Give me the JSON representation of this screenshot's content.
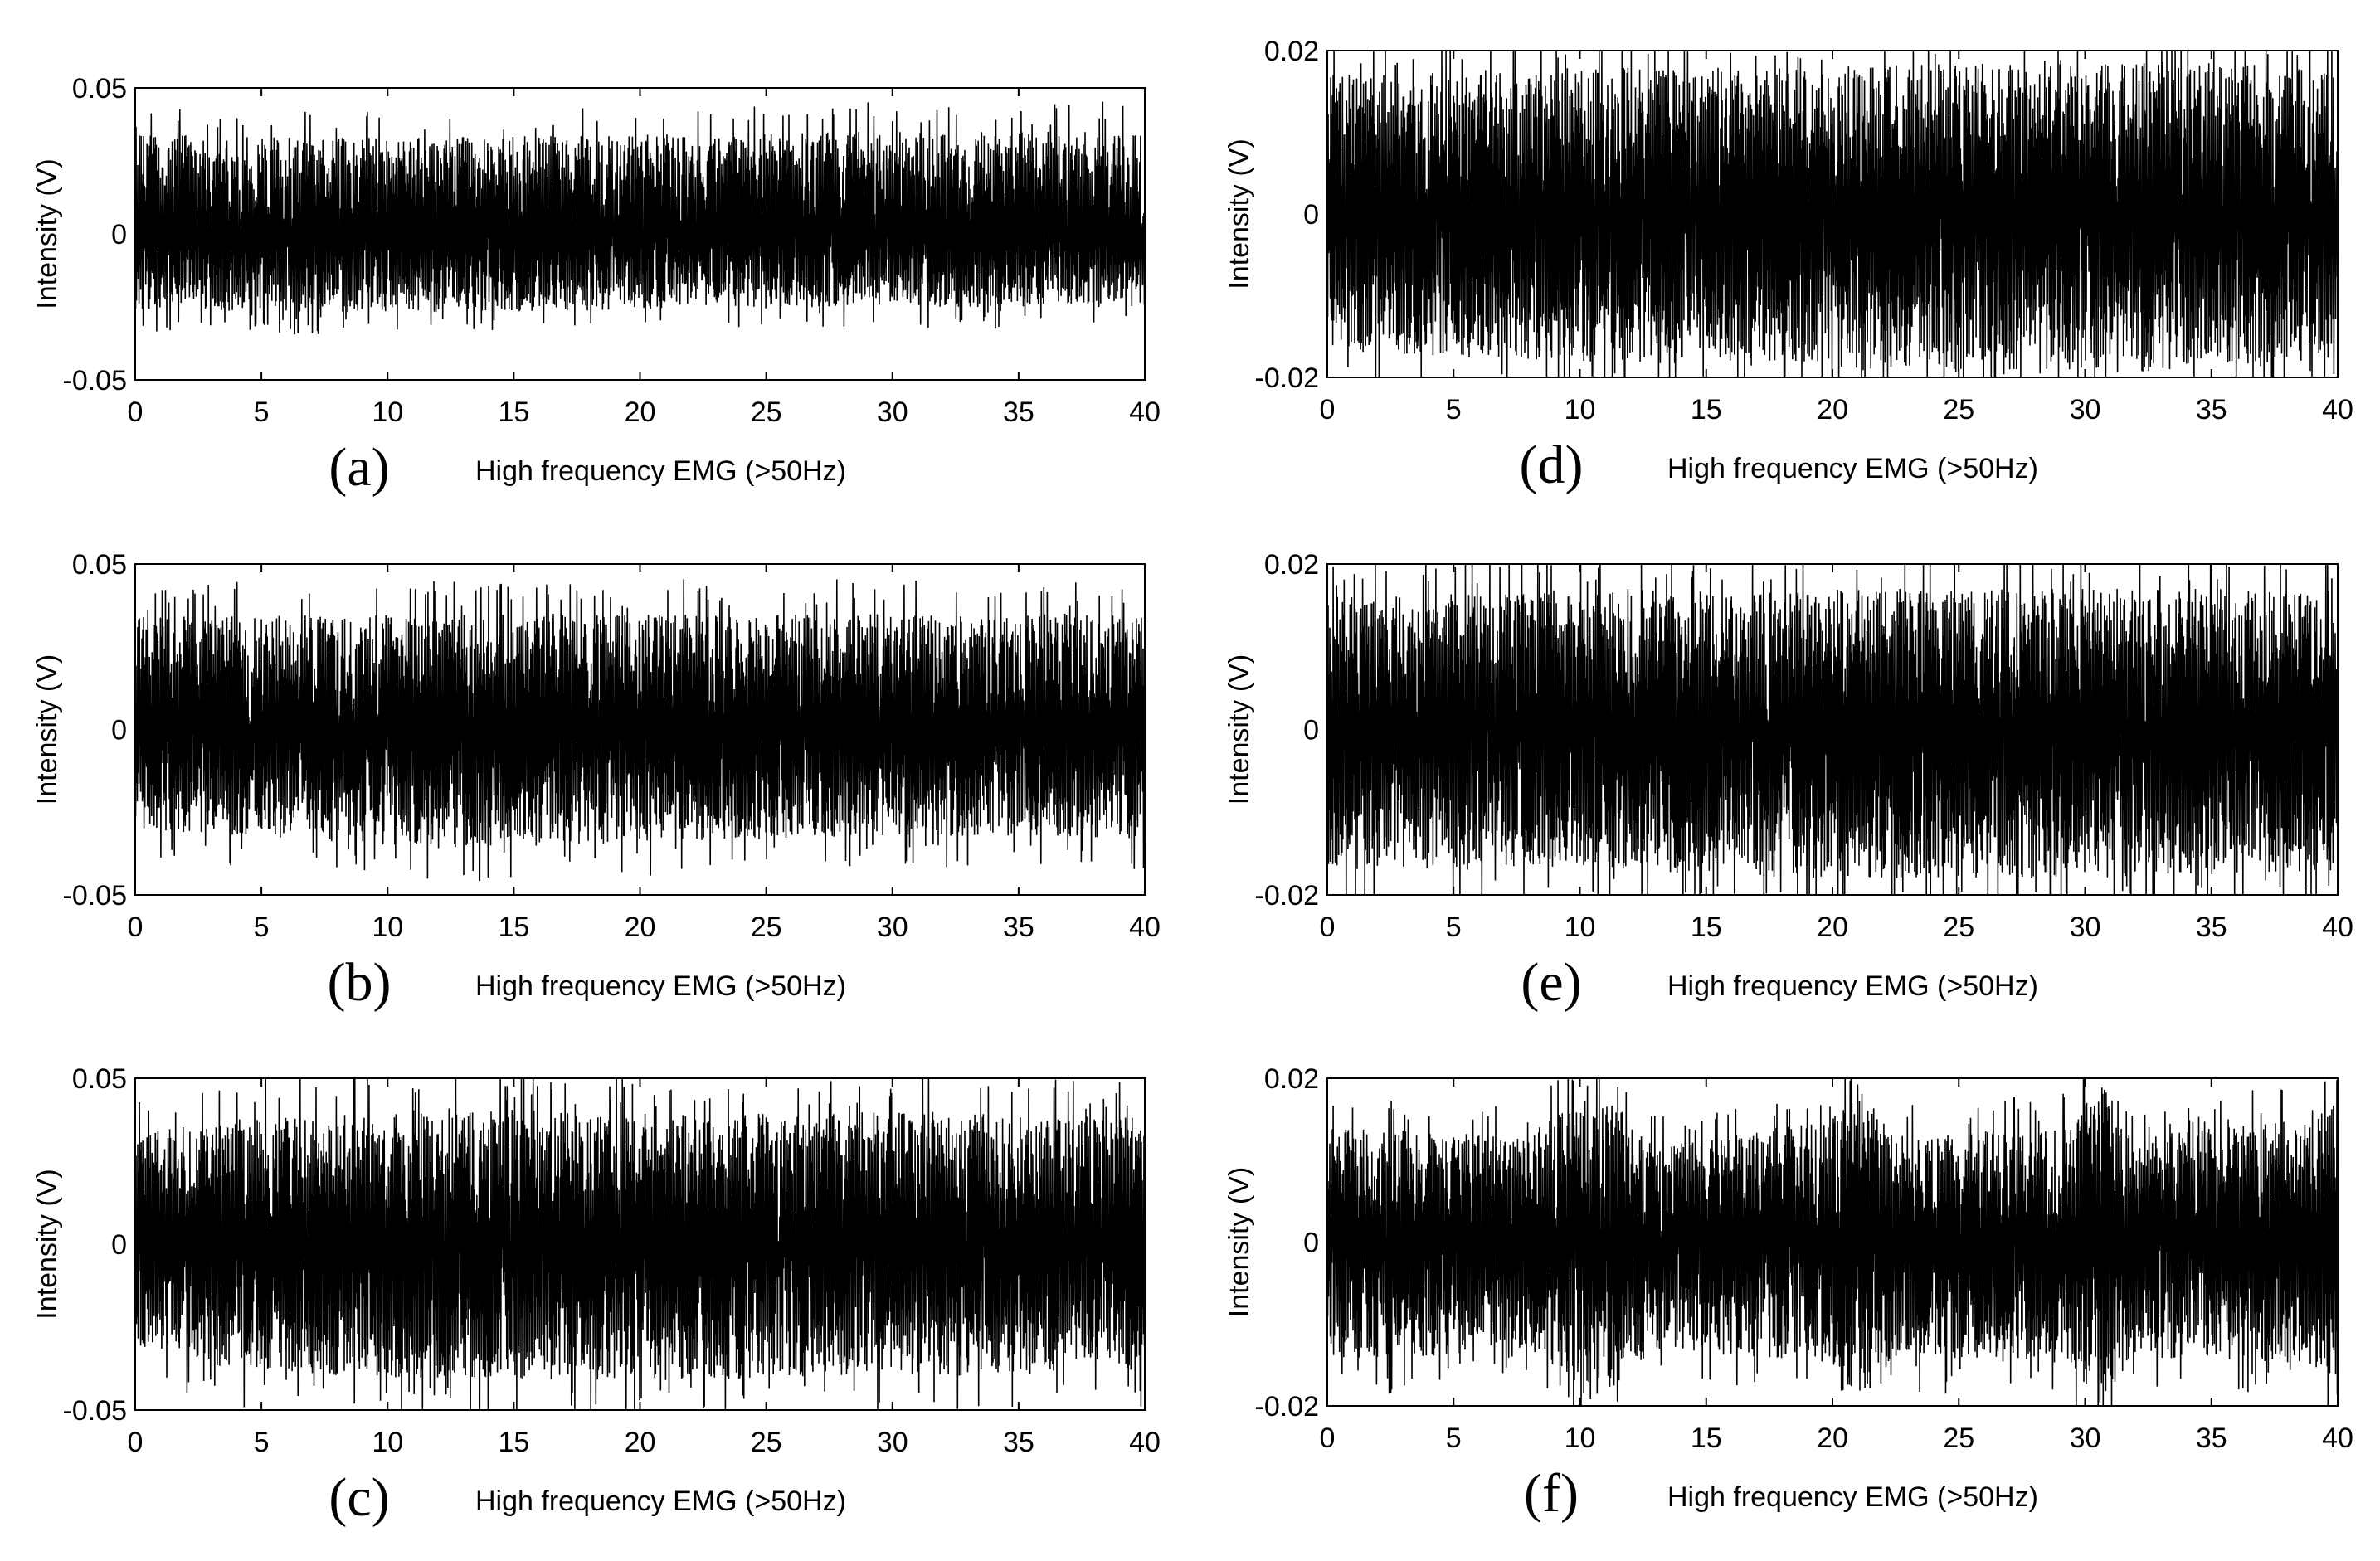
{
  "chart_data": [
    {
      "type": "line",
      "panel_label": "(a)",
      "xlabel": "High frequency EMG (>50Hz)",
      "ylabel": "Intensity (V)",
      "xlim": [
        0,
        40
      ],
      "ylim": [
        -0.05,
        0.05
      ],
      "x_ticks": [
        "0",
        "5",
        "10",
        "15",
        "20",
        "25",
        "30",
        "35",
        "40"
      ],
      "y_ticks": [
        "-0.05",
        "0",
        "0.05"
      ],
      "series": [
        {
          "values": [
            [
              0,
              0.034,
              -0.026
            ],
            [
              10,
              0.033,
              -0.027
            ],
            [
              20,
              0.034,
              -0.026
            ],
            [
              30,
              0.035,
              -0.025
            ],
            [
              40,
              0.035,
              -0.025
            ]
          ]
        }
      ],
      "grid": false
    },
    {
      "type": "line",
      "panel_label": "(b)",
      "xlabel": "High frequency EMG (>50Hz)",
      "ylabel": "Intensity (V)",
      "xlim": [
        0,
        40
      ],
      "ylim": [
        -0.05,
        0.05
      ],
      "x_ticks": [
        "0",
        "5",
        "10",
        "15",
        "20",
        "25",
        "30",
        "35",
        "40"
      ],
      "y_ticks": [
        "-0.05",
        "0",
        "0.05"
      ],
      "series": [
        {
          "values": [
            [
              0,
              0.034,
              -0.03
            ],
            [
              12,
              0.035,
              -0.036
            ],
            [
              21,
              0.035,
              -0.034
            ],
            [
              30,
              0.035,
              -0.032
            ],
            [
              40,
              0.035,
              -0.033
            ]
          ]
        }
      ],
      "grid": false
    },
    {
      "type": "line",
      "panel_label": "(c)",
      "xlabel": "High frequency EMG (>50Hz)",
      "ylabel": "Intensity (V)",
      "xlim": [
        0,
        40
      ],
      "ylim": [
        -0.05,
        0.05
      ],
      "x_ticks": [
        "0",
        "5",
        "10",
        "15",
        "20",
        "25",
        "30",
        "35",
        "40"
      ],
      "y_ticks": [
        "-0.05",
        "0",
        "0.05"
      ],
      "series": [
        {
          "values": [
            [
              0,
              0.033,
              -0.03
            ],
            [
              3,
              0.038,
              -0.038
            ],
            [
              12.5,
              0.041,
              -0.041
            ],
            [
              22,
              0.039,
              -0.041
            ],
            [
              31,
              0.04,
              -0.04
            ],
            [
              40,
              0.038,
              -0.038
            ]
          ]
        }
      ],
      "grid": false
    },
    {
      "type": "line",
      "panel_label": "(d)",
      "xlabel": "High frequency EMG (>50Hz)",
      "ylabel": "Intensity (V)",
      "xlim": [
        0,
        40
      ],
      "ylim": [
        -0.02,
        0.02
      ],
      "x_ticks": [
        "0",
        "5",
        "10",
        "15",
        "20",
        "25",
        "30",
        "35",
        "40"
      ],
      "y_ticks": [
        "-0.02",
        "0",
        "0.02"
      ],
      "series": [
        {
          "values": [
            [
              0,
              0.017,
              -0.017
            ],
            [
              10,
              0.018,
              -0.018
            ],
            [
              20,
              0.018,
              -0.019
            ],
            [
              30,
              0.019,
              -0.02
            ],
            [
              40,
              0.018,
              -0.018
            ]
          ]
        }
      ],
      "grid": false
    },
    {
      "type": "line",
      "panel_label": "(e)",
      "xlabel": "High frequency EMG (>50Hz)",
      "ylabel": "Intensity (V)",
      "xlim": [
        0,
        40
      ],
      "ylim": [
        -0.02,
        0.02
      ],
      "x_ticks": [
        "0",
        "5",
        "10",
        "15",
        "20",
        "25",
        "30",
        "35",
        "40"
      ],
      "y_ticks": [
        "-0.02",
        "0",
        "0.02"
      ],
      "series": [
        {
          "values": [
            [
              0,
              0.016,
              -0.017
            ],
            [
              10,
              0.017,
              -0.017
            ],
            [
              20,
              0.017,
              -0.018
            ],
            [
              30,
              0.017,
              -0.018
            ],
            [
              40,
              0.017,
              -0.017
            ]
          ]
        }
      ],
      "grid": false
    },
    {
      "type": "line",
      "panel_label": "(f)",
      "xlabel": "High frequency EMG (>50Hz)",
      "ylabel": "Intensity (V)",
      "xlim": [
        0,
        40
      ],
      "ylim": [
        -0.02,
        0.02
      ],
      "x_ticks": [
        "0",
        "5",
        "10",
        "15",
        "20",
        "25",
        "30",
        "35",
        "40"
      ],
      "y_ticks": [
        "-0.02",
        "0",
        "0.02"
      ],
      "series": [
        {
          "values": [
            [
              0,
              0.014,
              -0.015
            ],
            [
              8,
              0.013,
              -0.013
            ],
            [
              10.5,
              0.02,
              -0.02
            ],
            [
              13,
              0.012,
              -0.013
            ],
            [
              20,
              0.015,
              -0.015
            ],
            [
              21,
              0.02,
              -0.02
            ],
            [
              22.5,
              0.013,
              -0.014
            ],
            [
              29.5,
              0.014,
              -0.015
            ],
            [
              30.5,
              0.02,
              -0.02
            ],
            [
              32,
              0.013,
              -0.014
            ],
            [
              39,
              0.015,
              -0.015
            ],
            [
              40,
              0.02,
              -0.02
            ]
          ]
        }
      ],
      "grid": false
    }
  ]
}
